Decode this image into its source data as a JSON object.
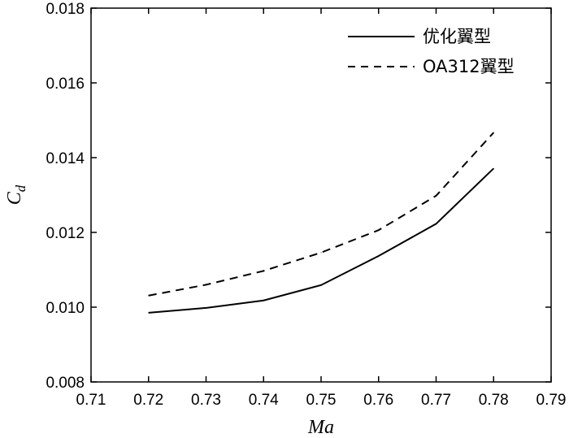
{
  "chart_data": {
    "type": "line",
    "title": "",
    "xlabel": "Ma",
    "ylabel_main": "C",
    "ylabel_sub": "d",
    "xlim": [
      0.71,
      0.79
    ],
    "ylim": [
      0.008,
      0.018
    ],
    "xticks": [
      0.71,
      0.72,
      0.73,
      0.74,
      0.75,
      0.76,
      0.77,
      0.78,
      0.79
    ],
    "yticks": [
      0.008,
      0.01,
      0.012,
      0.014,
      0.016,
      0.018
    ],
    "xtick_labels": [
      "0.71",
      "0.72",
      "0.73",
      "0.74",
      "0.75",
      "0.76",
      "0.77",
      "0.78",
      "0.79"
    ],
    "ytick_labels": [
      "0.008",
      "0.010",
      "0.012",
      "0.014",
      "0.016",
      "0.018"
    ],
    "grid": false,
    "legend_position": "top-right",
    "series": [
      {
        "name": "优化翼型",
        "style": "solid",
        "color": "#000000",
        "x": [
          0.72,
          0.73,
          0.74,
          0.75,
          0.76,
          0.77,
          0.78
        ],
        "y": [
          0.00985,
          0.00998,
          0.01018,
          0.01059,
          0.01137,
          0.01223,
          0.01371
        ]
      },
      {
        "name": "OA312翼型",
        "style": "dashed",
        "color": "#000000",
        "x": [
          0.72,
          0.73,
          0.74,
          0.75,
          0.76,
          0.77,
          0.78
        ],
        "y": [
          0.01031,
          0.0106,
          0.01097,
          0.01146,
          0.01206,
          0.01298,
          0.01467
        ]
      }
    ]
  }
}
